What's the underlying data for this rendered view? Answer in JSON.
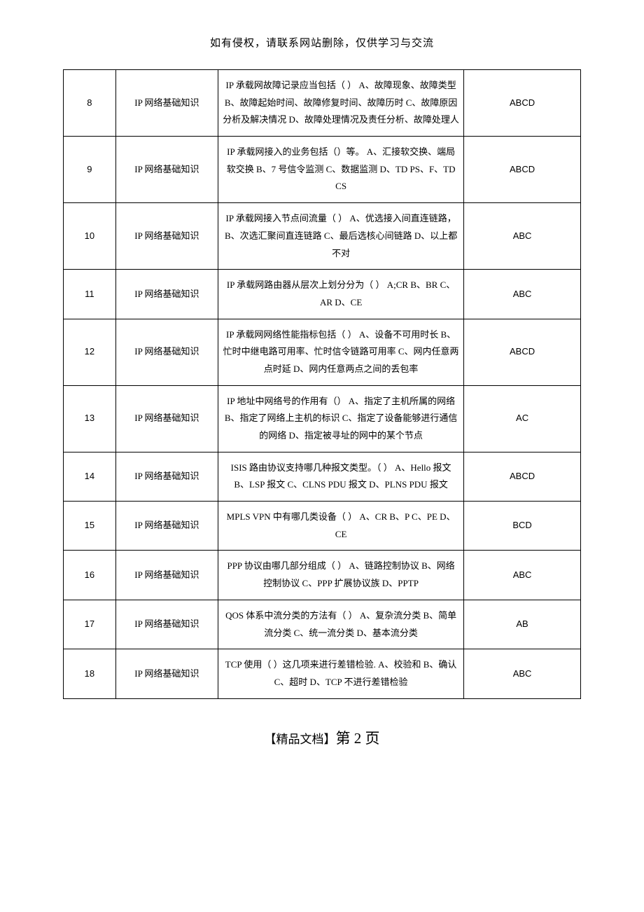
{
  "header_note": "如有侵权，请联系网站删除，仅供学习与交流",
  "footer_prefix": "【精品文档】",
  "footer_page_label": "第 2 页",
  "table": {
    "rows": [
      {
        "num": "8",
        "cat": "IP 网络基础知识",
        "q": "IP 承载网故障记录应当包括（  ）  A、故障现象、故障类型  B、故障起始时间、故障修复时间、故障历时  C、故障原因分析及解决情况  D、故障处理情况及责任分析、故障处理人",
        "ans": "ABCD"
      },
      {
        "num": "9",
        "cat": "IP 网络基础知识",
        "q": "IP 承载网接入的业务包括（）等。  A、汇接软交换、端局软交换  B、7 号信令监测  C、数据监测  D、TD PS、F、TD CS",
        "ans": "ABCD"
      },
      {
        "num": "10",
        "cat": "IP 网络基础知识",
        "q": "IP 承载网接入节点间流量（  ）  A、优选接入间直连链路，  B、次选汇聚间直连链路  C、最后选核心间链路  D、以上都不对",
        "ans": "ABC"
      },
      {
        "num": "11",
        "cat": "IP 网络基础知识",
        "q": "IP 承载网路由器从层次上划分分为（  ）  A;CR B、BR C、AR D、CE",
        "ans": "ABC"
      },
      {
        "num": "12",
        "cat": "IP 网络基础知识",
        "q": "IP 承载网网络性能指标包括（  ）  A、设备不可用时长  B、忙时中继电路可用率、忙时信令链路可用率  C、网内任意两点时延  D、网内任意两点之间的丢包率",
        "ans": "ABCD"
      },
      {
        "num": "13",
        "cat": "IP 网络基础知识",
        "q": "IP 地址中网络号的作用有（）  A、指定了主机所属的网络  B、指定了网络上主机的标识  C、指定了设备能够进行通信的网络  D、指定被寻址的网中的某个节点",
        "ans": "AC"
      },
      {
        "num": "14",
        "cat": "IP 网络基础知识",
        "q": "ISIS 路由协议支持哪几种报文类型。（  ）  A、Hello 报文  B、LSP 报文  C、CLNS PDU 报文  D、PLNS PDU 报文",
        "ans": "ABCD"
      },
      {
        "num": "15",
        "cat": "IP 网络基础知识",
        "q": "MPLS VPN 中有哪几类设备（  ）  A、CR   B、P   C、PE   D、CE",
        "ans": "BCD"
      },
      {
        "num": "16",
        "cat": "IP 网络基础知识",
        "q": "PPP 协议由哪几部分组成（  ）  A、链路控制协议  B、网络控制协议  C、PPP 扩展协议族  D、PPTP",
        "ans": "ABC"
      },
      {
        "num": "17",
        "cat": "IP 网络基础知识",
        "q": "QOS 体系中流分类的方法有（  ）  A、复杂流分类  B、简单流分类  C、统一流分类  D、基本流分类",
        "ans": "AB"
      },
      {
        "num": "18",
        "cat": "IP 网络基础知识",
        "q": "TCP 使用（  ）这几项来进行差错检验.   A、校验和  B、确认  C、超时  D、TCP 不进行差错检验",
        "ans": "ABC"
      }
    ]
  }
}
